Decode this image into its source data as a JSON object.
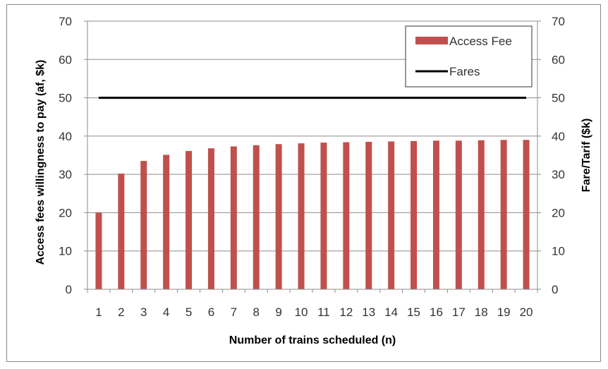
{
  "chart_data": {
    "type": "bar",
    "categories": [
      "1",
      "2",
      "3",
      "4",
      "5",
      "6",
      "7",
      "8",
      "9",
      "10",
      "11",
      "12",
      "13",
      "14",
      "15",
      "16",
      "17",
      "18",
      "19",
      "20"
    ],
    "series": [
      {
        "name": "Access Fee",
        "type": "bar",
        "color": "#c0504d",
        "values": [
          20,
          30.2,
          33.5,
          35.1,
          36.1,
          36.8,
          37.3,
          37.6,
          37.9,
          38.1,
          38.3,
          38.4,
          38.5,
          38.6,
          38.7,
          38.8,
          38.8,
          38.9,
          39.0,
          39.0
        ]
      },
      {
        "name": "Fares",
        "type": "line",
        "color": "#000000",
        "values": [
          50,
          50,
          50,
          50,
          50,
          50,
          50,
          50,
          50,
          50,
          50,
          50,
          50,
          50,
          50,
          50,
          50,
          50,
          50,
          50
        ]
      }
    ],
    "xlabel": "Number of trains scheduled (n)",
    "ylabel": "Access fees willingness to pay (af, $k)",
    "y2label": "Fare/Tarif ($k)",
    "ylim": [
      0,
      70
    ],
    "y2lim": [
      0,
      70
    ],
    "yticks": [
      "0",
      "10",
      "20",
      "30",
      "40",
      "50",
      "60",
      "70"
    ],
    "y2ticks": [
      "0",
      "10",
      "20",
      "30",
      "40",
      "50",
      "60",
      "70"
    ],
    "grid": true,
    "legend": "top-right"
  }
}
